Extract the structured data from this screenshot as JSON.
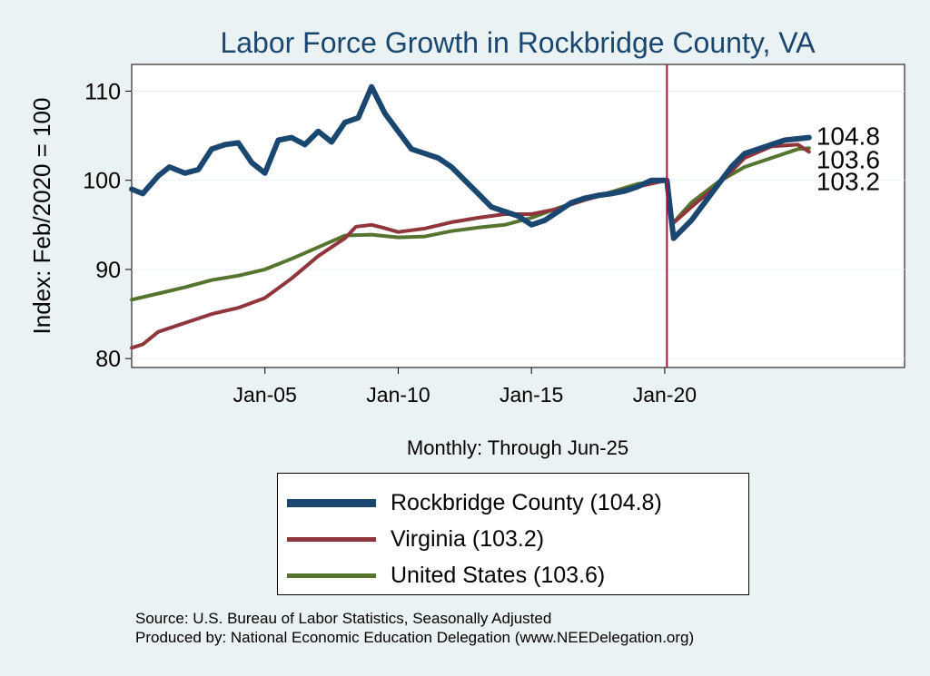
{
  "chart_data": {
    "type": "line",
    "title": "Labor Force Growth in Rockbridge  County, VA",
    "xlabel": "Monthly: Through Jun-25",
    "ylabel": "Index: Feb/2020 = 100",
    "xlim": [
      "Jan-00",
      "Jan-29"
    ],
    "ylim": [
      79,
      113
    ],
    "x_ticks": [
      {
        "label": "Jan-05",
        "value": 2005.0
      },
      {
        "label": "Jan-10",
        "value": 2010.0
      },
      {
        "label": "Jan-15",
        "value": 2015.0
      },
      {
        "label": "Jan-20",
        "value": 2020.0
      }
    ],
    "y_ticks": [
      80,
      90,
      100,
      110
    ],
    "grid": true,
    "vline": {
      "x": "Feb-20",
      "color": "#a0173a"
    },
    "end_labels": [
      "104.8",
      "103.6",
      "103.2"
    ],
    "legend_position": "bottom",
    "series": [
      {
        "name": "Rockbridge  County (104.8)",
        "color": "#1a476f",
        "width": 6,
        "points": [
          [
            "Jan-00",
            99.0
          ],
          [
            "Jun-00",
            98.5
          ],
          [
            "Jan-01",
            100.5
          ],
          [
            "Jun-01",
            101.5
          ],
          [
            "Jan-02",
            100.8
          ],
          [
            "Jul-02",
            101.2
          ],
          [
            "Jan-03",
            103.5
          ],
          [
            "Jul-03",
            104.0
          ],
          [
            "Jan-04",
            104.2
          ],
          [
            "Jul-04",
            102.0
          ],
          [
            "Jan-05",
            100.8
          ],
          [
            "Jul-05",
            104.5
          ],
          [
            "Jan-06",
            104.8
          ],
          [
            "Jul-06",
            104.0
          ],
          [
            "Jan-07",
            105.5
          ],
          [
            "Jul-07",
            104.3
          ],
          [
            "Jan-08",
            106.5
          ],
          [
            "Jul-08",
            107.0
          ],
          [
            "Jan-09",
            110.5
          ],
          [
            "Jul-09",
            107.5
          ],
          [
            "Jan-10",
            105.5
          ],
          [
            "Jul-10",
            103.5
          ],
          [
            "Jan-11",
            103.0
          ],
          [
            "Jul-11",
            102.5
          ],
          [
            "Jan-12",
            101.5
          ],
          [
            "Jul-12",
            100.0
          ],
          [
            "Jan-13",
            98.5
          ],
          [
            "Jul-13",
            97.0
          ],
          [
            "Jan-14",
            96.5
          ],
          [
            "Jul-14",
            96.0
          ],
          [
            "Jan-15",
            95.0
          ],
          [
            "Jul-15",
            95.5
          ],
          [
            "Jan-16",
            96.5
          ],
          [
            "Jul-16",
            97.5
          ],
          [
            "Jan-17",
            98.0
          ],
          [
            "Jul-17",
            98.3
          ],
          [
            "Jan-18",
            98.5
          ],
          [
            "Jul-18",
            98.8
          ],
          [
            "Jan-19",
            99.3
          ],
          [
            "Jul-19",
            100.0
          ],
          [
            "Feb-20",
            100.0
          ],
          [
            "May-20",
            93.5
          ],
          [
            "Jan-21",
            95.5
          ],
          [
            "Jul-21",
            97.5
          ],
          [
            "Jan-22",
            99.5
          ],
          [
            "Jul-22",
            101.5
          ],
          [
            "Jan-23",
            103.0
          ],
          [
            "Jul-23",
            103.5
          ],
          [
            "Jan-24",
            104.0
          ],
          [
            "Jul-24",
            104.5
          ],
          [
            "Jun-25",
            104.8
          ]
        ]
      },
      {
        "name": "Virginia (103.2)",
        "color": "#90353b",
        "width": 4,
        "points": [
          [
            "Jan-00",
            81.2
          ],
          [
            "Jun-00",
            81.6
          ],
          [
            "Jan-01",
            83.0
          ],
          [
            "Jan-02",
            84.0
          ],
          [
            "Jan-03",
            85.0
          ],
          [
            "Jan-04",
            85.7
          ],
          [
            "Jan-05",
            86.8
          ],
          [
            "Jan-06",
            89.0
          ],
          [
            "Jan-07",
            91.5
          ],
          [
            "Jan-08",
            93.5
          ],
          [
            "Jun-08",
            94.8
          ],
          [
            "Jan-09",
            95.0
          ],
          [
            "Jun-09",
            94.7
          ],
          [
            "Jan-10",
            94.2
          ],
          [
            "Jan-11",
            94.6
          ],
          [
            "Jan-12",
            95.3
          ],
          [
            "Jan-13",
            95.8
          ],
          [
            "Jan-14",
            96.2
          ],
          [
            "Jan-15",
            96.2
          ],
          [
            "Jan-16",
            96.8
          ],
          [
            "Jan-17",
            97.8
          ],
          [
            "Jan-18",
            98.6
          ],
          [
            "Jan-19",
            99.3
          ],
          [
            "Feb-20",
            100.0
          ],
          [
            "Apr-20",
            95.0
          ],
          [
            "Jan-21",
            97.0
          ],
          [
            "Jan-22",
            99.5
          ],
          [
            "Jan-23",
            102.5
          ],
          [
            "Jan-24",
            103.8
          ],
          [
            "Jan-25",
            104.0
          ],
          [
            "Jun-25",
            103.2
          ]
        ]
      },
      {
        "name": "United States (103.6)",
        "color": "#55752f",
        "width": 4,
        "points": [
          [
            "Jan-00",
            86.6
          ],
          [
            "Jan-01",
            87.3
          ],
          [
            "Jan-02",
            88.0
          ],
          [
            "Jan-03",
            88.8
          ],
          [
            "Jan-04",
            89.3
          ],
          [
            "Jan-05",
            90.0
          ],
          [
            "Jan-06",
            91.2
          ],
          [
            "Jan-07",
            92.5
          ],
          [
            "Jan-08",
            93.8
          ],
          [
            "Jan-09",
            93.9
          ],
          [
            "Jan-10",
            93.6
          ],
          [
            "Jan-11",
            93.7
          ],
          [
            "Jan-12",
            94.3
          ],
          [
            "Jan-13",
            94.7
          ],
          [
            "Jan-14",
            95.0
          ],
          [
            "Jan-15",
            95.8
          ],
          [
            "Jan-16",
            96.9
          ],
          [
            "Jan-17",
            97.8
          ],
          [
            "Jan-18",
            98.7
          ],
          [
            "Jan-19",
            99.6
          ],
          [
            "Feb-20",
            100.0
          ],
          [
            "Apr-20",
            95.0
          ],
          [
            "Jan-21",
            97.5
          ],
          [
            "Jan-22",
            99.8
          ],
          [
            "Jan-23",
            101.5
          ],
          [
            "Jan-24",
            102.5
          ],
          [
            "Jan-25",
            103.5
          ],
          [
            "Jun-25",
            103.6
          ]
        ]
      }
    ]
  },
  "source": {
    "line1": "Source: U.S. Bureau of Labor Statistics, Seasonally Adjusted",
    "line2": "Produced by: National Economic Education Delegation (www.NEEDelegation.org)"
  }
}
